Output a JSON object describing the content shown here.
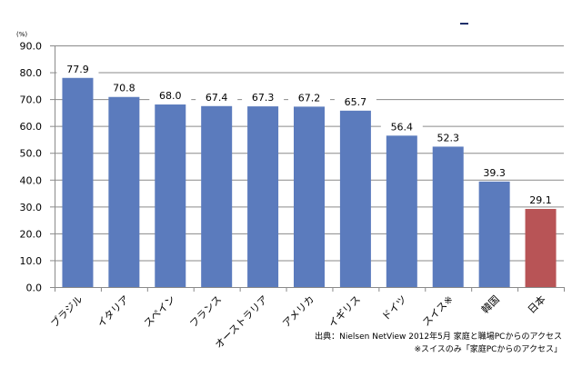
{
  "chart_data": {
    "type": "bar",
    "title": "",
    "xlabel": "",
    "ylabel": "(%)",
    "ylim": [
      0,
      90
    ],
    "yticks": [
      "0.0",
      "10.0",
      "20.0",
      "30.0",
      "40.0",
      "50.0",
      "60.0",
      "70.0",
      "80.0",
      "90.0"
    ],
    "grid": true,
    "legend": "none",
    "categories": [
      "ブラジル",
      "イタリア",
      "スペイン",
      "フランス",
      "オーストラリア",
      "アメリカ",
      "イギリス",
      "ドイツ",
      "スイス※",
      "韓国",
      "日本"
    ],
    "values": [
      77.9,
      70.8,
      68.0,
      67.4,
      67.3,
      67.2,
      65.7,
      56.4,
      52.3,
      39.3,
      29.1
    ],
    "value_labels": [
      "77.9",
      "70.8",
      "68.0",
      "67.4",
      "67.3",
      "67.2",
      "65.7",
      "56.4",
      "52.3",
      "39.3",
      "29.1"
    ],
    "colors": [
      "#5b7bbd",
      "#5b7bbd",
      "#5b7bbd",
      "#5b7bbd",
      "#5b7bbd",
      "#5b7bbd",
      "#5b7bbd",
      "#5b7bbd",
      "#5b7bbd",
      "#5b7bbd",
      "#b85456"
    ],
    "annotations": [
      "出典：Nielsen NetView 2012年5月 家庭と職場PCからのアクセス",
      "※スイスのみ「家庭PCからのアクセス」"
    ]
  },
  "notes": {
    "source": "出典：Nielsen NetView 2012年5月 家庭と職場PCからのアクセス",
    "footnote": "※スイスのみ「家庭PCからのアクセス」"
  }
}
